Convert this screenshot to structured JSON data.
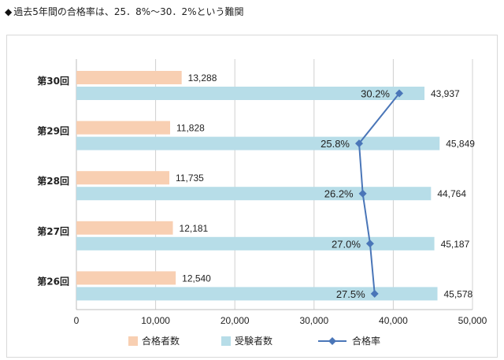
{
  "headline": {
    "bullet": "◆",
    "text": "過去5年間の合格率は、25．8%～30．2%という難関"
  },
  "colors": {
    "passers": "#f8cfb2",
    "examinees": "#b7dde8",
    "rate": "#4a76b8",
    "grid": "#d0d0d0"
  },
  "chart_data": {
    "type": "bar",
    "orientation": "horizontal",
    "categories": [
      "第30回",
      "第29回",
      "第28回",
      "第27回",
      "第26回"
    ],
    "series": [
      {
        "name": "合格者数",
        "kind": "bar",
        "values": [
          13288,
          11828,
          11735,
          12181,
          12540
        ]
      },
      {
        "name": "受験者数",
        "kind": "bar",
        "values": [
          43937,
          45849,
          44764,
          45187,
          45578
        ]
      },
      {
        "name": "合格率",
        "kind": "line",
        "marker": "diamond",
        "values": [
          30.2,
          25.8,
          26.2,
          27.0,
          27.5
        ]
      }
    ],
    "value_labels": {
      "passers": [
        "13,288",
        "11,828",
        "11,735",
        "12,181",
        "12,540"
      ],
      "examinees": [
        "43,937",
        "45,849",
        "44,764",
        "45,187",
        "45,578"
      ],
      "rate": [
        "30.2%",
        "25.8%",
        "26.2%",
        "27.0%",
        "27.5%"
      ]
    },
    "x_ticks": [
      "0",
      "10,000",
      "20,000",
      "30,000",
      "40,000",
      "50,000"
    ],
    "xlim": [
      0,
      50000
    ],
    "grid": true,
    "legend": [
      "合格者数",
      "受験者数",
      "合格率"
    ],
    "legend_position": "bottom"
  }
}
